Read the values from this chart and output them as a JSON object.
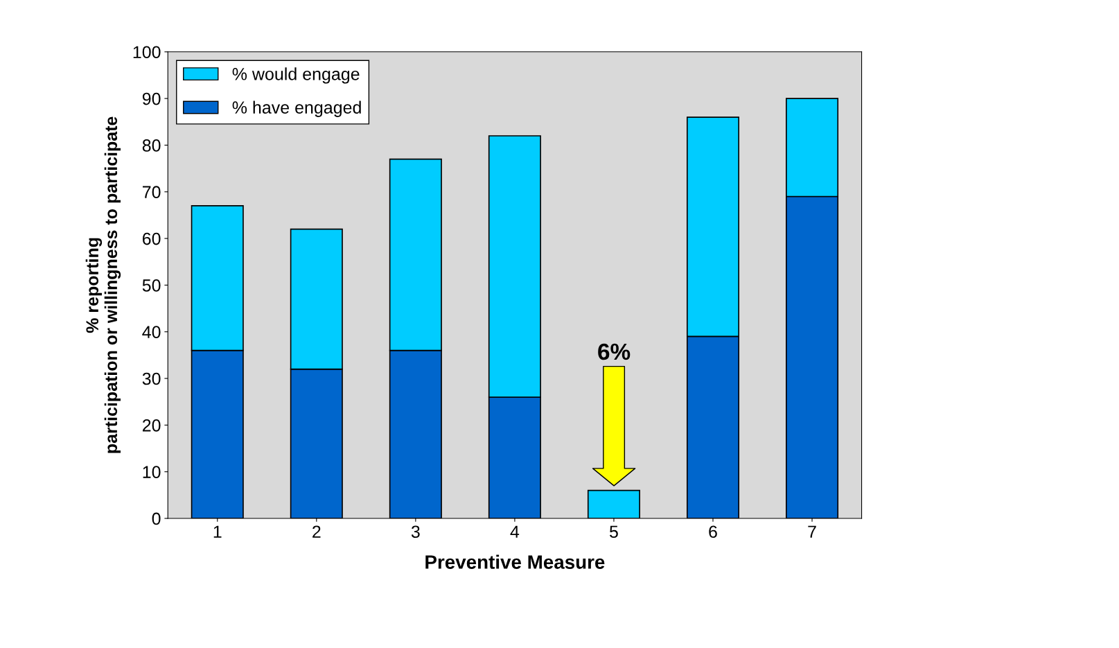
{
  "chart_data": {
    "type": "bar",
    "stacked": true,
    "xlabel": "Preventive Measure",
    "ylabel": "% reporting\nparticipation or willingness to participate",
    "categories": [
      "1",
      "2",
      "3",
      "4",
      "5",
      "6",
      "7"
    ],
    "series": [
      {
        "name": "% have engaged",
        "color": "#0066cc",
        "values": [
          36,
          32,
          36,
          26,
          0,
          39,
          69
        ]
      },
      {
        "name": "% would engage",
        "color": "#00ccff",
        "values": [
          31,
          30,
          41,
          56,
          6,
          47,
          21
        ]
      }
    ],
    "ylim": [
      0,
      100
    ],
    "yticks": [
      0,
      10,
      20,
      30,
      40,
      50,
      60,
      70,
      80,
      90,
      100
    ],
    "grid": false,
    "legend": "top left",
    "annotations": [
      "6%"
    ]
  }
}
